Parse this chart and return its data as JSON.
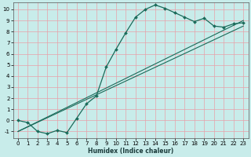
{
  "xlabel": "Humidex (Indice chaleur)",
  "bg_color": "#c8ecea",
  "grid_color_major": "#e8a0a8",
  "grid_color_minor": "#dde8e8",
  "line_color": "#1a6b5a",
  "xlim": [
    -0.5,
    23.5
  ],
  "ylim": [
    -1.6,
    10.6
  ],
  "xticks": [
    0,
    1,
    2,
    3,
    4,
    5,
    6,
    7,
    8,
    9,
    10,
    11,
    12,
    13,
    14,
    15,
    16,
    17,
    18,
    19,
    20,
    21,
    22,
    23
  ],
  "yticks": [
    -1,
    0,
    1,
    2,
    3,
    4,
    5,
    6,
    7,
    8,
    9,
    10
  ],
  "curve1_x": [
    0,
    1,
    2,
    3,
    4,
    5,
    6,
    7,
    8,
    9,
    10,
    11,
    12,
    13,
    14,
    15,
    16,
    17,
    18,
    19,
    20,
    21,
    22,
    23
  ],
  "curve1_y": [
    0,
    -0.2,
    -1.0,
    -1.2,
    -0.9,
    -1.1,
    0.2,
    1.5,
    2.2,
    4.8,
    6.4,
    7.9,
    9.3,
    10.0,
    10.4,
    10.1,
    9.7,
    9.3,
    8.9,
    9.2,
    8.5,
    8.4,
    8.7,
    8.8
  ],
  "line1_x": [
    0,
    23
  ],
  "line1_y": [
    -1.0,
    9.0
  ],
  "line2_x": [
    0,
    23
  ],
  "line2_y": [
    -1.0,
    8.5
  ]
}
